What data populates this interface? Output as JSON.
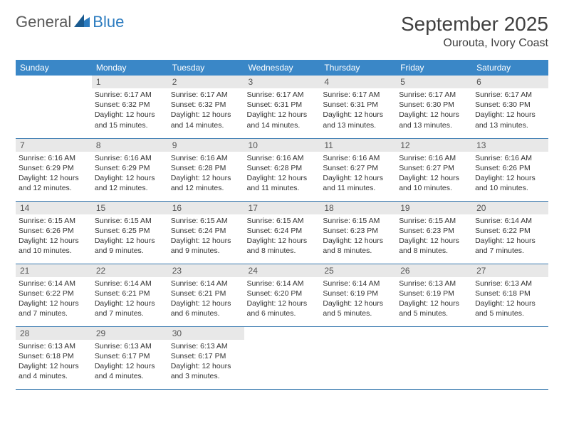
{
  "logo": {
    "text1": "General",
    "text2": "Blue"
  },
  "header": {
    "month": "September 2025",
    "location": "Ourouta, Ivory Coast"
  },
  "colors": {
    "headerBg": "#3a87c7",
    "headerText": "#ffffff",
    "dayNumBg": "#e8e8e8",
    "ruleColor": "#3a7ab0"
  },
  "weekdays": [
    "Sunday",
    "Monday",
    "Tuesday",
    "Wednesday",
    "Thursday",
    "Friday",
    "Saturday"
  ],
  "weeks": [
    [
      {
        "n": "",
        "sr": "",
        "ss": "",
        "dl": ""
      },
      {
        "n": "1",
        "sr": "Sunrise: 6:17 AM",
        "ss": "Sunset: 6:32 PM",
        "dl": "Daylight: 12 hours and 15 minutes."
      },
      {
        "n": "2",
        "sr": "Sunrise: 6:17 AM",
        "ss": "Sunset: 6:32 PM",
        "dl": "Daylight: 12 hours and 14 minutes."
      },
      {
        "n": "3",
        "sr": "Sunrise: 6:17 AM",
        "ss": "Sunset: 6:31 PM",
        "dl": "Daylight: 12 hours and 14 minutes."
      },
      {
        "n": "4",
        "sr": "Sunrise: 6:17 AM",
        "ss": "Sunset: 6:31 PM",
        "dl": "Daylight: 12 hours and 13 minutes."
      },
      {
        "n": "5",
        "sr": "Sunrise: 6:17 AM",
        "ss": "Sunset: 6:30 PM",
        "dl": "Daylight: 12 hours and 13 minutes."
      },
      {
        "n": "6",
        "sr": "Sunrise: 6:17 AM",
        "ss": "Sunset: 6:30 PM",
        "dl": "Daylight: 12 hours and 13 minutes."
      }
    ],
    [
      {
        "n": "7",
        "sr": "Sunrise: 6:16 AM",
        "ss": "Sunset: 6:29 PM",
        "dl": "Daylight: 12 hours and 12 minutes."
      },
      {
        "n": "8",
        "sr": "Sunrise: 6:16 AM",
        "ss": "Sunset: 6:29 PM",
        "dl": "Daylight: 12 hours and 12 minutes."
      },
      {
        "n": "9",
        "sr": "Sunrise: 6:16 AM",
        "ss": "Sunset: 6:28 PM",
        "dl": "Daylight: 12 hours and 12 minutes."
      },
      {
        "n": "10",
        "sr": "Sunrise: 6:16 AM",
        "ss": "Sunset: 6:28 PM",
        "dl": "Daylight: 12 hours and 11 minutes."
      },
      {
        "n": "11",
        "sr": "Sunrise: 6:16 AM",
        "ss": "Sunset: 6:27 PM",
        "dl": "Daylight: 12 hours and 11 minutes."
      },
      {
        "n": "12",
        "sr": "Sunrise: 6:16 AM",
        "ss": "Sunset: 6:27 PM",
        "dl": "Daylight: 12 hours and 10 minutes."
      },
      {
        "n": "13",
        "sr": "Sunrise: 6:16 AM",
        "ss": "Sunset: 6:26 PM",
        "dl": "Daylight: 12 hours and 10 minutes."
      }
    ],
    [
      {
        "n": "14",
        "sr": "Sunrise: 6:15 AM",
        "ss": "Sunset: 6:26 PM",
        "dl": "Daylight: 12 hours and 10 minutes."
      },
      {
        "n": "15",
        "sr": "Sunrise: 6:15 AM",
        "ss": "Sunset: 6:25 PM",
        "dl": "Daylight: 12 hours and 9 minutes."
      },
      {
        "n": "16",
        "sr": "Sunrise: 6:15 AM",
        "ss": "Sunset: 6:24 PM",
        "dl": "Daylight: 12 hours and 9 minutes."
      },
      {
        "n": "17",
        "sr": "Sunrise: 6:15 AM",
        "ss": "Sunset: 6:24 PM",
        "dl": "Daylight: 12 hours and 8 minutes."
      },
      {
        "n": "18",
        "sr": "Sunrise: 6:15 AM",
        "ss": "Sunset: 6:23 PM",
        "dl": "Daylight: 12 hours and 8 minutes."
      },
      {
        "n": "19",
        "sr": "Sunrise: 6:15 AM",
        "ss": "Sunset: 6:23 PM",
        "dl": "Daylight: 12 hours and 8 minutes."
      },
      {
        "n": "20",
        "sr": "Sunrise: 6:14 AM",
        "ss": "Sunset: 6:22 PM",
        "dl": "Daylight: 12 hours and 7 minutes."
      }
    ],
    [
      {
        "n": "21",
        "sr": "Sunrise: 6:14 AM",
        "ss": "Sunset: 6:22 PM",
        "dl": "Daylight: 12 hours and 7 minutes."
      },
      {
        "n": "22",
        "sr": "Sunrise: 6:14 AM",
        "ss": "Sunset: 6:21 PM",
        "dl": "Daylight: 12 hours and 7 minutes."
      },
      {
        "n": "23",
        "sr": "Sunrise: 6:14 AM",
        "ss": "Sunset: 6:21 PM",
        "dl": "Daylight: 12 hours and 6 minutes."
      },
      {
        "n": "24",
        "sr": "Sunrise: 6:14 AM",
        "ss": "Sunset: 6:20 PM",
        "dl": "Daylight: 12 hours and 6 minutes."
      },
      {
        "n": "25",
        "sr": "Sunrise: 6:14 AM",
        "ss": "Sunset: 6:19 PM",
        "dl": "Daylight: 12 hours and 5 minutes."
      },
      {
        "n": "26",
        "sr": "Sunrise: 6:13 AM",
        "ss": "Sunset: 6:19 PM",
        "dl": "Daylight: 12 hours and 5 minutes."
      },
      {
        "n": "27",
        "sr": "Sunrise: 6:13 AM",
        "ss": "Sunset: 6:18 PM",
        "dl": "Daylight: 12 hours and 5 minutes."
      }
    ],
    [
      {
        "n": "28",
        "sr": "Sunrise: 6:13 AM",
        "ss": "Sunset: 6:18 PM",
        "dl": "Daylight: 12 hours and 4 minutes."
      },
      {
        "n": "29",
        "sr": "Sunrise: 6:13 AM",
        "ss": "Sunset: 6:17 PM",
        "dl": "Daylight: 12 hours and 4 minutes."
      },
      {
        "n": "30",
        "sr": "Sunrise: 6:13 AM",
        "ss": "Sunset: 6:17 PM",
        "dl": "Daylight: 12 hours and 3 minutes."
      },
      {
        "n": "",
        "sr": "",
        "ss": "",
        "dl": ""
      },
      {
        "n": "",
        "sr": "",
        "ss": "",
        "dl": ""
      },
      {
        "n": "",
        "sr": "",
        "ss": "",
        "dl": ""
      },
      {
        "n": "",
        "sr": "",
        "ss": "",
        "dl": ""
      }
    ]
  ]
}
